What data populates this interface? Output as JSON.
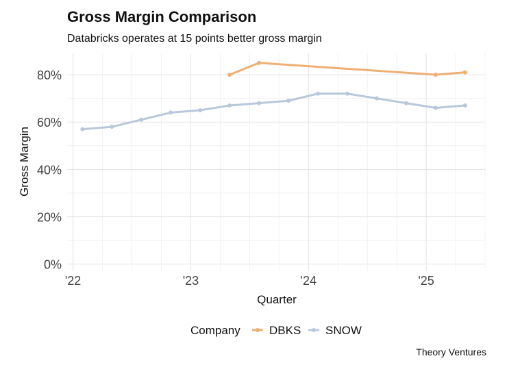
{
  "chart_data": {
    "type": "line",
    "title": "Gross Margin Comparison",
    "subtitle": "Databricks operates at 15 points better gross margin",
    "xlabel": "Quarter",
    "ylabel": "Gross Margin",
    "caption": "Theory Ventures",
    "legend_title": "Company",
    "legend_position": "bottom",
    "grid": true,
    "xlim": [
      2021.95,
      2025.5
    ],
    "ylim": [
      -3,
      89
    ],
    "x_ticks": [
      2022,
      2023,
      2024,
      2025
    ],
    "x_tick_labels": [
      "'22",
      "'23",
      "'24",
      "'25"
    ],
    "y_ticks": [
      0,
      20,
      40,
      60,
      80
    ],
    "y_tick_labels": [
      "0%",
      "20%",
      "40%",
      "60%",
      "80%"
    ],
    "series": [
      {
        "name": "DBKS",
        "color": "#eeaf73",
        "x": [
          2023.33,
          2023.58,
          2025.08,
          2025.33
        ],
        "values": [
          80,
          85,
          80,
          81
        ]
      },
      {
        "name": "SNOW",
        "color": "#b8c8db",
        "x": [
          2022.08,
          2022.33,
          2022.58,
          2022.83,
          2023.08,
          2023.33,
          2023.58,
          2023.83,
          2024.08,
          2024.33,
          2024.58,
          2024.83,
          2025.08,
          2025.33
        ],
        "values": [
          57,
          58,
          61,
          64,
          65,
          67,
          68,
          69,
          72,
          72,
          70,
          68,
          66,
          67
        ]
      }
    ]
  }
}
